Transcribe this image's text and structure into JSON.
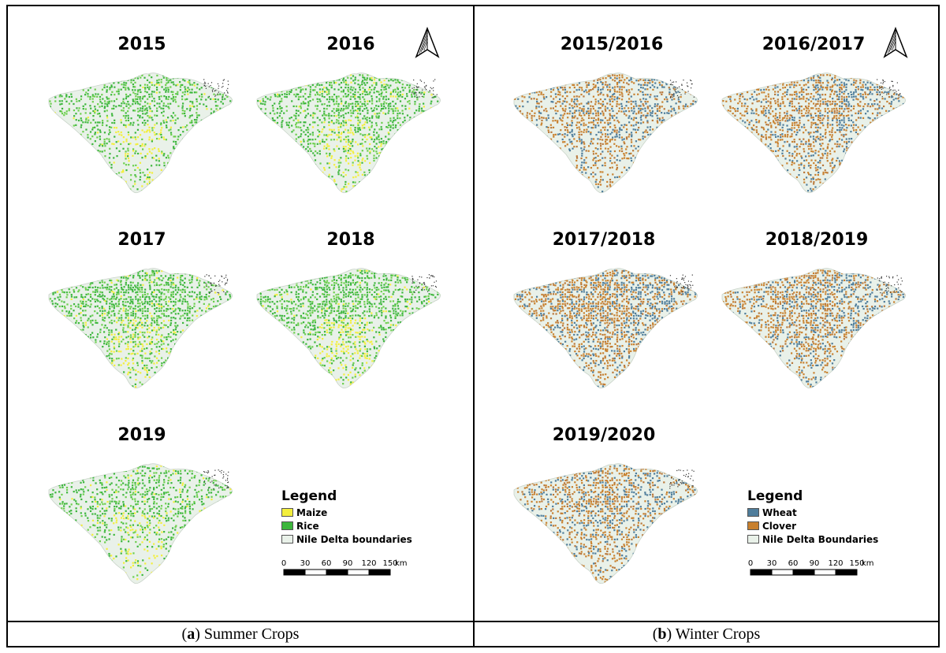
{
  "panels": [
    {
      "id": "summer",
      "caption_letter": "a",
      "caption_text": " Summer Crops",
      "maps": [
        {
          "label": "2015"
        },
        {
          "label": "2016"
        },
        {
          "label": "2017"
        },
        {
          "label": "2018"
        },
        {
          "label": "2019"
        }
      ],
      "legend": {
        "title": "Legend",
        "items": [
          {
            "label": "Maize",
            "color": "#f3ef3c"
          },
          {
            "label": "Rice",
            "color": "#3cb63c"
          },
          {
            "label": "Nile Delta boundaries",
            "color": "#e9f1e9"
          }
        ]
      },
      "scale": {
        "ticks": [
          "0",
          "30",
          "60",
          "90",
          "120",
          "150"
        ],
        "unit": "km"
      }
    },
    {
      "id": "winter",
      "caption_letter": "b",
      "caption_text": " Winter Crops",
      "maps": [
        {
          "label": "2015/2016"
        },
        {
          "label": "2016/2017"
        },
        {
          "label": "2017/2018"
        },
        {
          "label": "2018/2019"
        },
        {
          "label": "2019/2020"
        }
      ],
      "legend": {
        "title": "Legend",
        "items": [
          {
            "label": "Wheat",
            "color": "#4f7d9b"
          },
          {
            "label": "Clover",
            "color": "#c8802e"
          },
          {
            "label": "Nile Delta Boundaries",
            "color": "#e9f1e9"
          }
        ]
      },
      "scale": {
        "ticks": [
          "0",
          "30",
          "60",
          "90",
          "120",
          "150"
        ],
        "unit": "km"
      }
    }
  ],
  "map_style": {
    "background": "#e9f1e9",
    "border": "#c9d3c9"
  }
}
